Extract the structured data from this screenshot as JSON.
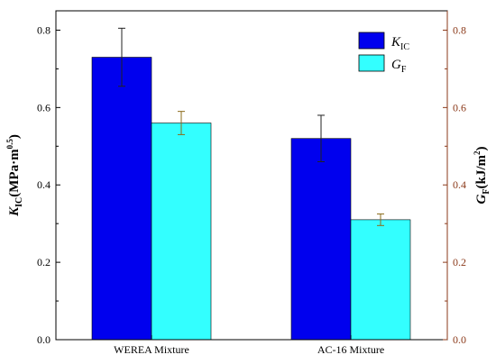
{
  "chart_data": {
    "type": "bar",
    "categories": [
      "WEREA Mixture",
      "AC-16 Mixture"
    ],
    "series": [
      {
        "name": "K_IC",
        "label_main": "K",
        "label_sub": "IC",
        "axis": "left",
        "values": [
          0.73,
          0.52
        ],
        "errors": [
          0.075,
          0.06
        ],
        "color": "#0000ee"
      },
      {
        "name": "G_F",
        "label_main": "G",
        "label_sub": "F",
        "axis": "right",
        "values": [
          0.56,
          0.31
        ],
        "errors": [
          0.03,
          0.015
        ],
        "color": "#33ffff"
      }
    ],
    "ylabel_left": {
      "main": "K",
      "sub": "IC",
      "rest": "(MPa·m",
      "sup": "0.5",
      "close": ")"
    },
    "ylabel_right": {
      "main": "G",
      "sub": "F",
      "rest": "(kJ/m",
      "sup": "2",
      "close": ")"
    },
    "ylim": [
      0,
      0.85
    ],
    "y_ticks": [
      "0.0",
      "0.2",
      "0.4",
      "0.6",
      "0.8"
    ],
    "right_axis_color": "#8b3a1a",
    "legend_position": "top-right"
  }
}
